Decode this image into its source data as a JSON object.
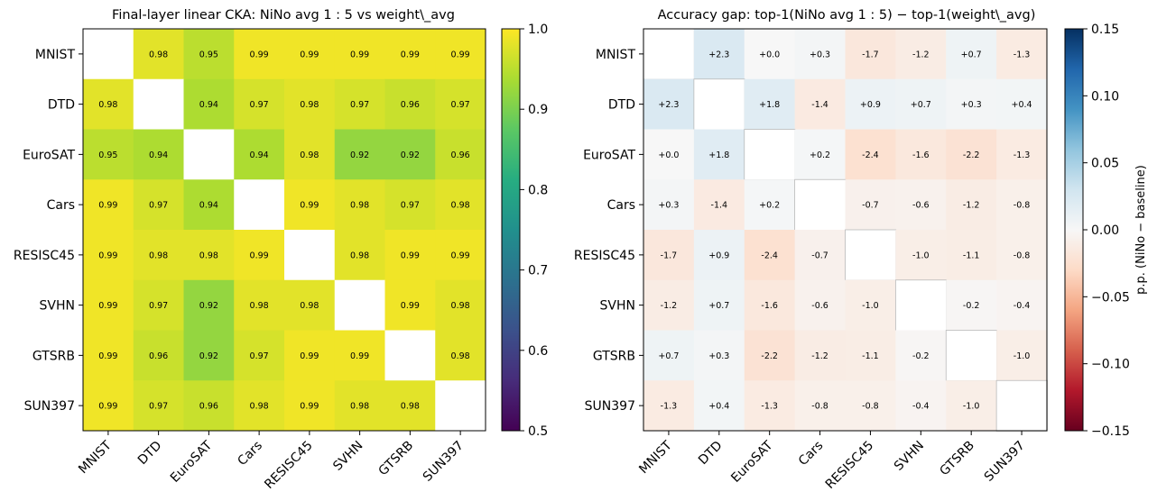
{
  "chart_data": [
    {
      "type": "heatmap",
      "title": "Final-layer linear CKA: NiNo avg 1 : 5 vs weight\\_avg",
      "rows": [
        "MNIST",
        "DTD",
        "EuroSAT",
        "Cars",
        "RESISC45",
        "SVHN",
        "GTSRB",
        "SUN397"
      ],
      "cols": [
        "MNIST",
        "DTD",
        "EuroSAT",
        "Cars",
        "RESISC45",
        "SVHN",
        "GTSRB",
        "SUN397"
      ],
      "values": [
        [
          null,
          0.98,
          0.95,
          0.99,
          0.99,
          0.99,
          0.99,
          0.99
        ],
        [
          0.98,
          null,
          0.94,
          0.97,
          0.98,
          0.97,
          0.96,
          0.97
        ],
        [
          0.95,
          0.94,
          null,
          0.94,
          0.98,
          0.92,
          0.92,
          0.96
        ],
        [
          0.99,
          0.97,
          0.94,
          null,
          0.99,
          0.98,
          0.97,
          0.98
        ],
        [
          0.99,
          0.98,
          0.98,
          0.99,
          null,
          0.98,
          0.99,
          0.99
        ],
        [
          0.99,
          0.97,
          0.92,
          0.98,
          0.98,
          null,
          0.99,
          0.98
        ],
        [
          0.99,
          0.96,
          0.92,
          0.97,
          0.99,
          0.99,
          null,
          0.98
        ],
        [
          0.99,
          0.97,
          0.96,
          0.98,
          0.99,
          0.98,
          0.98,
          null
        ]
      ],
      "cell_labels": [
        [
          "",
          "0.98",
          "0.95",
          "0.99",
          "0.99",
          "0.99",
          "0.99",
          "0.99"
        ],
        [
          "0.98",
          "",
          "0.94",
          "0.97",
          "0.98",
          "0.97",
          "0.96",
          "0.97"
        ],
        [
          "0.95",
          "0.94",
          "",
          "0.94",
          "0.98",
          "0.92",
          "0.92",
          "0.96"
        ],
        [
          "0.99",
          "0.97",
          "0.94",
          "",
          "0.99",
          "0.98",
          "0.97",
          "0.98"
        ],
        [
          "0.99",
          "0.98",
          "0.98",
          "0.99",
          "",
          "0.98",
          "0.99",
          "0.99"
        ],
        [
          "0.99",
          "0.97",
          "0.92",
          "0.98",
          "0.98",
          "",
          "0.99",
          "0.98"
        ],
        [
          "0.99",
          "0.96",
          "0.92",
          "0.97",
          "0.99",
          "0.99",
          "",
          "0.98"
        ],
        [
          "0.99",
          "0.97",
          "0.96",
          "0.98",
          "0.99",
          "0.98",
          "0.98",
          ""
        ]
      ],
      "colormap": "viridis",
      "vmin": 0.5,
      "vmax": 1.0,
      "colorbar_ticks": [
        "0.5",
        "0.6",
        "0.7",
        "0.8",
        "0.9",
        "1.0"
      ],
      "colorbar_label": ""
    },
    {
      "type": "heatmap",
      "title": "Accuracy gap: top-1(NiNo avg 1 : 5) − top-1(weight\\_avg)",
      "rows": [
        "MNIST",
        "DTD",
        "EuroSAT",
        "Cars",
        "RESISC45",
        "SVHN",
        "GTSRB",
        "SUN397"
      ],
      "cols": [
        "MNIST",
        "DTD",
        "EuroSAT",
        "Cars",
        "RESISC45",
        "SVHN",
        "GTSRB",
        "SUN397"
      ],
      "values": [
        [
          null,
          2.3,
          0.0,
          0.3,
          -1.7,
          -1.2,
          0.7,
          -1.3
        ],
        [
          2.3,
          null,
          1.8,
          -1.4,
          0.9,
          0.7,
          0.3,
          0.4
        ],
        [
          0.0,
          1.8,
          null,
          0.2,
          -2.4,
          -1.6,
          -2.2,
          -1.3
        ],
        [
          0.3,
          -1.4,
          0.2,
          null,
          -0.7,
          -0.6,
          -1.2,
          -0.8
        ],
        [
          -1.7,
          0.9,
          -2.4,
          -0.7,
          null,
          -1.0,
          -1.1,
          -0.8
        ],
        [
          -1.2,
          0.7,
          -1.6,
          -0.6,
          -1.0,
          null,
          -0.2,
          -0.4
        ],
        [
          0.7,
          0.3,
          -2.2,
          -1.2,
          -1.1,
          -0.2,
          null,
          -1.0
        ],
        [
          -1.3,
          0.4,
          -1.3,
          -0.8,
          -0.8,
          -0.4,
          -1.0,
          null
        ]
      ],
      "cell_labels": [
        [
          "",
          "+2.3",
          "+0.0",
          "+0.3",
          "-1.7",
          "-1.2",
          "+0.7",
          "-1.3"
        ],
        [
          "+2.3",
          "",
          "+1.8",
          "-1.4",
          "+0.9",
          "+0.7",
          "+0.3",
          "+0.4"
        ],
        [
          "+0.0",
          "+1.8",
          "",
          "+0.2",
          "-2.4",
          "-1.6",
          "-2.2",
          "-1.3"
        ],
        [
          "+0.3",
          "-1.4",
          "+0.2",
          "",
          "-0.7",
          "-0.6",
          "-1.2",
          "-0.8"
        ],
        [
          "-1.7",
          "+0.9",
          "-2.4",
          "-0.7",
          "",
          "-1.0",
          "-1.1",
          "-0.8"
        ],
        [
          "-1.2",
          "+0.7",
          "-1.6",
          "-0.6",
          "-1.0",
          "",
          "-0.2",
          "-0.4"
        ],
        [
          "+0.7",
          "+0.3",
          "-2.2",
          "-1.2",
          "-1.1",
          "-0.2",
          "",
          "-1.0"
        ],
        [
          "-1.3",
          "+0.4",
          "-1.3",
          "-0.8",
          "-0.8",
          "-0.4",
          "-1.0",
          ""
        ]
      ],
      "value_scale": 0.01,
      "colormap": "RdBu",
      "vmin": -0.15,
      "vmax": 0.15,
      "colorbar_ticks": [
        "0.15",
        "0.10",
        "0.05",
        "0.00",
        "−0.05",
        "−0.10",
        "−0.15"
      ],
      "colorbar_label": "p.p. (NiNo − baseline)"
    }
  ]
}
